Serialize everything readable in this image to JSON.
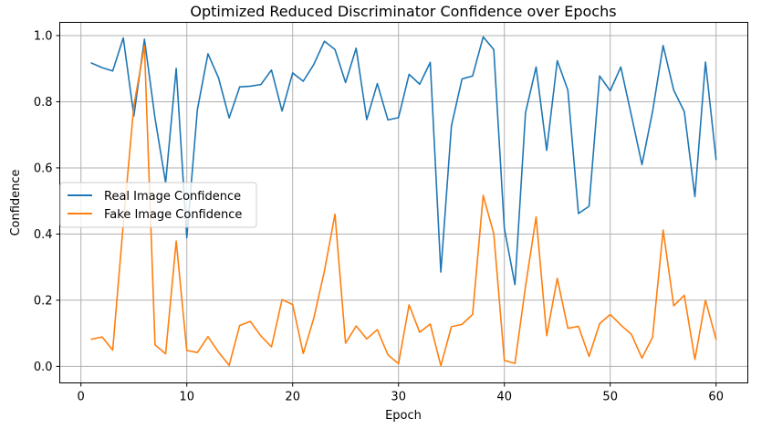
{
  "chart_data": {
    "type": "line",
    "title": "Optimized Reduced Discriminator Confidence over Epochs",
    "xlabel": "Epoch",
    "ylabel": "Confidence",
    "xlim": [
      -2.0,
      63.0
    ],
    "ylim": [
      -0.05,
      1.04
    ],
    "xticks": [
      0,
      10,
      20,
      30,
      40,
      50,
      60
    ],
    "yticks": [
      0.0,
      0.2,
      0.4,
      0.6,
      0.8,
      1.0
    ],
    "xtick_labels": [
      "0",
      "10",
      "20",
      "30",
      "40",
      "50",
      "60"
    ],
    "ytick_labels": [
      "0.0",
      "0.2",
      "0.4",
      "0.6",
      "0.8",
      "1.0"
    ],
    "grid": true,
    "legend_position": "center-left",
    "x": [
      1,
      2,
      3,
      4,
      5,
      6,
      7,
      8,
      9,
      10,
      11,
      12,
      13,
      14,
      15,
      16,
      17,
      18,
      19,
      20,
      21,
      22,
      23,
      24,
      25,
      26,
      27,
      28,
      29,
      30,
      31,
      32,
      33,
      34,
      35,
      36,
      37,
      38,
      39,
      40,
      41,
      42,
      43,
      44,
      45,
      46,
      47,
      48,
      49,
      50,
      51,
      52,
      53,
      54,
      55,
      56,
      57,
      58,
      59,
      60
    ],
    "series": [
      {
        "name": "Real Image Confidence",
        "color": "#1f77b4",
        "values": [
          0.917,
          0.903,
          0.893,
          0.993,
          0.757,
          0.989,
          0.75,
          0.555,
          0.901,
          0.389,
          0.776,
          0.945,
          0.872,
          0.751,
          0.845,
          0.847,
          0.852,
          0.896,
          0.772,
          0.887,
          0.862,
          0.913,
          0.983,
          0.958,
          0.858,
          0.962,
          0.746,
          0.855,
          0.745,
          0.752,
          0.883,
          0.853,
          0.919,
          0.285,
          0.727,
          0.869,
          0.878,
          0.996,
          0.958,
          0.417,
          0.247,
          0.767,
          0.905,
          0.653,
          0.924,
          0.835,
          0.462,
          0.484,
          0.878,
          0.833,
          0.905,
          0.759,
          0.61,
          0.77,
          0.97,
          0.835,
          0.77,
          0.513,
          0.92,
          0.626
        ]
      },
      {
        "name": "Fake Image Confidence",
        "color": "#ff7f0e",
        "values": [
          0.082,
          0.089,
          0.049,
          0.43,
          0.789,
          0.968,
          0.065,
          0.038,
          0.379,
          0.048,
          0.042,
          0.09,
          0.043,
          0.003,
          0.124,
          0.136,
          0.092,
          0.059,
          0.202,
          0.187,
          0.039,
          0.146,
          0.288,
          0.46,
          0.07,
          0.122,
          0.083,
          0.111,
          0.035,
          0.008,
          0.186,
          0.103,
          0.128,
          0.002,
          0.12,
          0.127,
          0.157,
          0.517,
          0.401,
          0.018,
          0.009,
          0.242,
          0.452,
          0.093,
          0.266,
          0.115,
          0.121,
          0.03,
          0.129,
          0.157,
          0.125,
          0.097,
          0.025,
          0.088,
          0.412,
          0.183,
          0.215,
          0.021,
          0.2,
          0.082
        ]
      }
    ]
  }
}
